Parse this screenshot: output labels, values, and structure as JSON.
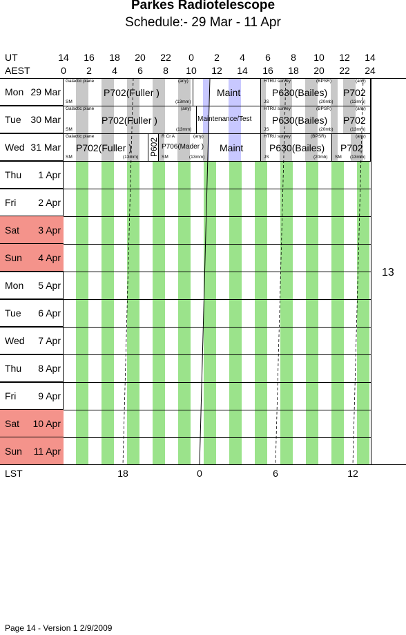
{
  "title": "Parkes Radiotelescope",
  "subtitle": "Schedule:- 29 Mar - 11 Apr",
  "ut_label": "UT",
  "aest_label": "AEST",
  "lst_label": "LST",
  "ut_ticks": [
    "14",
    "16",
    "18",
    "20",
    "22",
    "0",
    "2",
    "4",
    "6",
    "8",
    "10",
    "12",
    "14"
  ],
  "aest_ticks": [
    "0",
    "2",
    "4",
    "6",
    "8",
    "10",
    "12",
    "14",
    "16",
    "18",
    "20",
    "22",
    "24"
  ],
  "lst_ticks": [
    "18",
    "0",
    "6",
    "12"
  ],
  "days": [
    {
      "name": "Mon",
      "date": "29 Mar",
      "weekend": false
    },
    {
      "name": "Tue",
      "date": "30 Mar",
      "weekend": false
    },
    {
      "name": "Wed",
      "date": "31 Mar",
      "weekend": false
    },
    {
      "name": "Thu",
      "date": "1  Apr",
      "weekend": false
    },
    {
      "name": "Fri",
      "date": "2  Apr",
      "weekend": false
    },
    {
      "name": "Sat",
      "date": "3  Apr",
      "weekend": true
    },
    {
      "name": "Sun",
      "date": "4  Apr",
      "weekend": true
    },
    {
      "name": "Mon",
      "date": "5  Apr",
      "weekend": false
    },
    {
      "name": "Tue",
      "date": "6  Apr",
      "weekend": false
    },
    {
      "name": "Wed",
      "date": "7  Apr",
      "weekend": false
    },
    {
      "name": "Thu",
      "date": "8  Apr",
      "weekend": false
    },
    {
      "name": "Fri",
      "date": "9  Apr",
      "weekend": false
    },
    {
      "name": "Sat",
      "date": "10 Apr",
      "weekend": true
    },
    {
      "name": "Sun",
      "date": "11 Apr",
      "weekend": true
    }
  ],
  "side_note": "13",
  "colors": {
    "weekend": "#f4938b",
    "green": "#9be38b",
    "gray": "#c8c8c8",
    "blue": "#c8c8ff"
  },
  "schedule": {
    "mon": {
      "p702_a": "P702(Fuller )",
      "gal": "Galactic plane",
      "sm": "SM",
      "any": "(any)",
      "mm": "(13mm)",
      "maint": "Maint",
      "htru": "HTRU survey",
      "bpsr": "(BPSR)",
      "js": "JS",
      "mb": "(20mb)",
      "p630": "P630(Bailes)",
      "p702_b": "P702",
      "any2": "(any)",
      "mm2": "(13mm)"
    },
    "tue": {
      "p702_a": "P702(Fuller )",
      "gal": "Galactic plane",
      "sm": "SM",
      "any": "(any)",
      "mm": "(13mm)",
      "maint": "Maintenance/Test",
      "htru": "HTRU survey",
      "bpsr": "(BPSR)",
      "js": "JS",
      "mb": "(20mb)",
      "p630": "P630(Bailes)",
      "p702_b": "P702",
      "any2": "(any)",
      "mm2": "(13mm)"
    },
    "wed": {
      "p702_a": "P702(Fuller )",
      "gal": "Galactic plane",
      "sm": "SM",
      "mm": "(13mm)",
      "p602": "P602",
      "rcra": "R Cr A",
      "any": "(any)",
      "p706": "P706(Mader )",
      "sm2": "SM",
      "mm2": "(13mm)",
      "maint": "Maint",
      "htru": "HTRU survey",
      "bpsr": "(BPSR)",
      "js": "JS",
      "mb": "(20mb)",
      "p630": "P630(Bailes)",
      "sm3": "SM",
      "p702_b": "P702",
      "any2": "(any)",
      "mm3": "(13mm)"
    }
  },
  "footer": "Page 14 - Version 1  2/9/2009"
}
